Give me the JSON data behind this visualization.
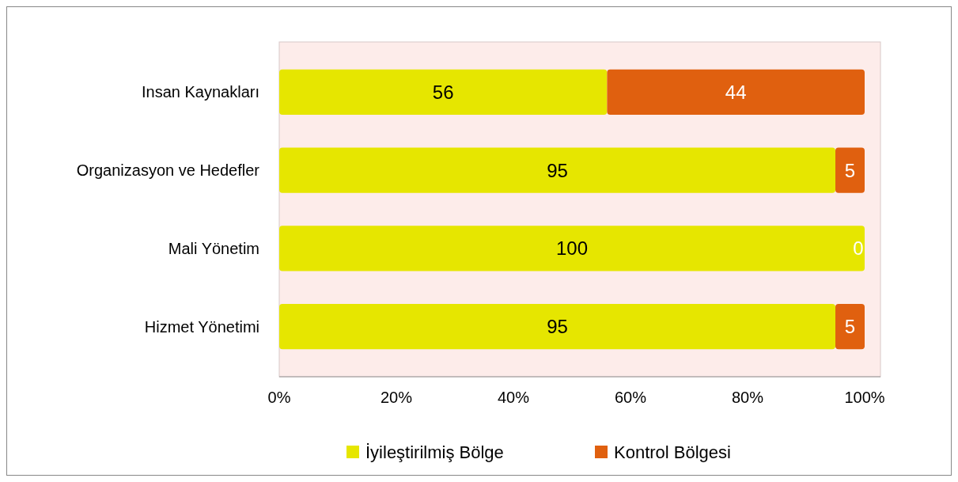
{
  "chart_data": {
    "type": "bar",
    "orientation": "horizontal",
    "stacked": true,
    "data_labels": true,
    "legend": "bottom",
    "categories": [
      "Insan Kaynakları",
      "Organizasyon ve Hedefler",
      "Mali Yönetim",
      "Hizmet Yönetimi"
    ],
    "series": [
      {
        "name": "İyileştirilmiş Bölge",
        "color": "#e6e600",
        "values": [
          56,
          95,
          100,
          95
        ]
      },
      {
        "name": "Kontrol Bölgesi",
        "color": "#e0600f",
        "values": [
          44,
          5,
          0,
          5
        ]
      }
    ],
    "xlim": [
      0,
      100
    ],
    "xticks": [
      {
        "value": 0,
        "label": "0%"
      },
      {
        "value": 20,
        "label": "20%"
      },
      {
        "value": 40,
        "label": "40%"
      },
      {
        "value": 60,
        "label": "60%"
      },
      {
        "value": 80,
        "label": "80%"
      },
      {
        "value": 100,
        "label": "100%"
      }
    ]
  }
}
